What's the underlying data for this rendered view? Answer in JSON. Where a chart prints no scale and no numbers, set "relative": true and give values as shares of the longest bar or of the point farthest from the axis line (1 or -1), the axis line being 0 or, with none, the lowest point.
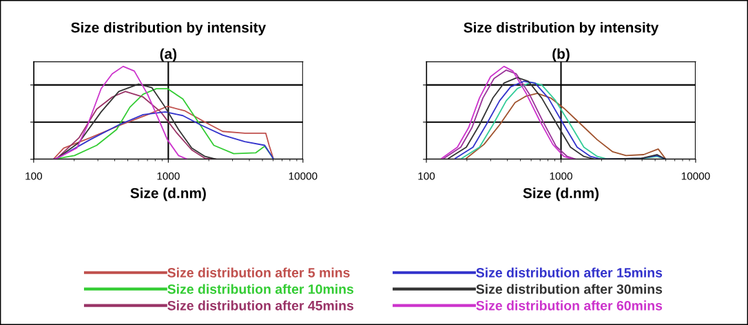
{
  "chart_data": [
    {
      "type": "line",
      "title": "Size distribution by intensity",
      "subtitle": "(a)",
      "xlabel": "Size (d.nm)",
      "relative": true,
      "log": "x",
      "xlim": [
        100,
        10000
      ],
      "xticks": [
        100,
        1000,
        10000
      ],
      "grid": true,
      "legend": "bottom",
      "tick_labels": "x",
      "marker": "none",
      "line_style": "solid",
      "series": [
        {
          "name": "Size distribution after 5 mins",
          "color": "#c0504d",
          "x": [
            140,
            167,
            262,
            445,
            701,
            985,
            1333,
            1875,
            2535,
            3697,
            5297,
            5607,
            6050
          ],
          "values": [
            0,
            0.12,
            0.23,
            0.37,
            0.48,
            0.57,
            0.52,
            0.4,
            0.3,
            0.28,
            0.28,
            0.15,
            0
          ]
        },
        {
          "name": "Size distribution after 10mins",
          "color": "#33cc33",
          "x": [
            140,
            201,
            294,
            413,
            518,
            650,
            815,
            985,
            1282,
            1672,
            2178,
            3061,
            4470,
            5199,
            5824,
            6050
          ],
          "values": [
            0,
            0.04,
            0.15,
            0.32,
            0.56,
            0.7,
            0.76,
            0.76,
            0.65,
            0.4,
            0.15,
            0.06,
            0.07,
            0.14,
            0.04,
            0
          ]
        },
        {
          "name": "Size distribution after 45mins",
          "color": "#993366",
          "x": [
            140,
            149,
            217,
            294,
            383,
            480,
            650,
            879,
            1146,
            1494,
            1875,
            2264
          ],
          "values": [
            0,
            0.01,
            0.23,
            0.54,
            0.67,
            0.73,
            0.67,
            0.51,
            0.29,
            0.1,
            0.01,
            0
          ]
        },
        {
          "name": "Size distribution after 15mins",
          "color": "#3333cc",
          "x": [
            140,
            149,
            262,
            429,
            650,
            948,
            1282,
            1738,
            2535,
            3697,
            5199,
            5824,
            6050
          ],
          "values": [
            0,
            0.01,
            0.21,
            0.37,
            0.48,
            0.51,
            0.47,
            0.37,
            0.26,
            0.19,
            0.15,
            0.04,
            0
          ]
        },
        {
          "name": "Size distribution after 30mins",
          "color": "#333333",
          "x": [
            140,
            149,
            217,
            317,
            429,
            602,
            756,
            948,
            1191,
            1494,
            1875,
            2264
          ],
          "values": [
            0,
            0.01,
            0.18,
            0.51,
            0.73,
            0.81,
            0.77,
            0.56,
            0.32,
            0.12,
            0.03,
            0
          ]
        },
        {
          "name": "Size distribution after 60mins",
          "color": "#cc33cc",
          "x": [
            140,
            149,
            209,
            252,
            317,
            383,
            462,
            559,
            701,
            847,
            985,
            1191,
            1384
          ],
          "values": [
            0,
            0.01,
            0.12,
            0.37,
            0.76,
            0.92,
            1.0,
            0.95,
            0.7,
            0.43,
            0.21,
            0.04,
            0
          ]
        }
      ]
    },
    {
      "type": "line",
      "title": "Size distribution by intensity",
      "subtitle": "(b)",
      "xlabel": "Size (d.nm)",
      "relative": true,
      "log": "x",
      "xlim": [
        100,
        10000
      ],
      "xticks": [
        100,
        1000,
        10000
      ],
      "grid": true,
      "tick_labels": "x",
      "marker": "none",
      "line_style": "solid",
      "series": [
        {
          "color": "#a0522d",
          "x": [
            198,
            268,
            350,
            456,
            551,
            667,
            838,
            1050,
            1421,
            1859,
            2422,
            3041,
            4114,
            5272,
            6012
          ],
          "values": [
            0.01,
            0.16,
            0.37,
            0.61,
            0.68,
            0.71,
            0.66,
            0.55,
            0.37,
            0.21,
            0.08,
            0.04,
            0.05,
            0.11,
            0
          ]
        },
        {
          "color": "#33cc99",
          "x": [
            183,
            248,
            312,
            392,
            473,
            595,
            719,
            903,
            1177,
            1479,
            1859,
            2244,
            4114,
            5165,
            6012
          ],
          "values": [
            0.01,
            0.13,
            0.37,
            0.63,
            0.76,
            0.83,
            0.8,
            0.64,
            0.37,
            0.13,
            0.03,
            0,
            0.01,
            0.03,
            0
          ]
        },
        {
          "color": "#993399",
          "x": [
            135,
            180,
            218,
            263,
            318,
            392,
            465,
            583,
            732,
            920,
            1112,
            1294
          ],
          "values": [
            0.01,
            0.13,
            0.34,
            0.66,
            0.87,
            0.96,
            0.92,
            0.7,
            0.41,
            0.14,
            0.03,
            0
          ]
        },
        {
          "color": "#3333cc",
          "x": [
            164,
            222,
            278,
            350,
            423,
            531,
            641,
            805,
            1050,
            1318,
            1655,
            2002,
            3963,
            5165,
            6012
          ],
          "values": [
            0.01,
            0.13,
            0.37,
            0.63,
            0.78,
            0.84,
            0.82,
            0.66,
            0.37,
            0.13,
            0.03,
            0,
            0.01,
            0.04,
            0
          ]
        },
        {
          "color": "#333333",
          "x": [
            146,
            198,
            248,
            312,
            377,
            473,
            572,
            719,
            938,
            1177,
            1479,
            1788,
            3963,
            5165,
            6012
          ],
          "values": [
            0.01,
            0.13,
            0.37,
            0.66,
            0.82,
            0.88,
            0.84,
            0.66,
            0.37,
            0.13,
            0.03,
            0,
            0.01,
            0.05,
            0
          ]
        },
        {
          "color": "#cc33cc",
          "x": [
            130,
            170,
            206,
            248,
            300,
            377,
            439,
            551,
            692,
            869,
            1050,
            1222
          ],
          "values": [
            0.01,
            0.13,
            0.34,
            0.66,
            0.89,
            1.0,
            0.95,
            0.71,
            0.42,
            0.16,
            0.03,
            0
          ]
        }
      ]
    }
  ]
}
